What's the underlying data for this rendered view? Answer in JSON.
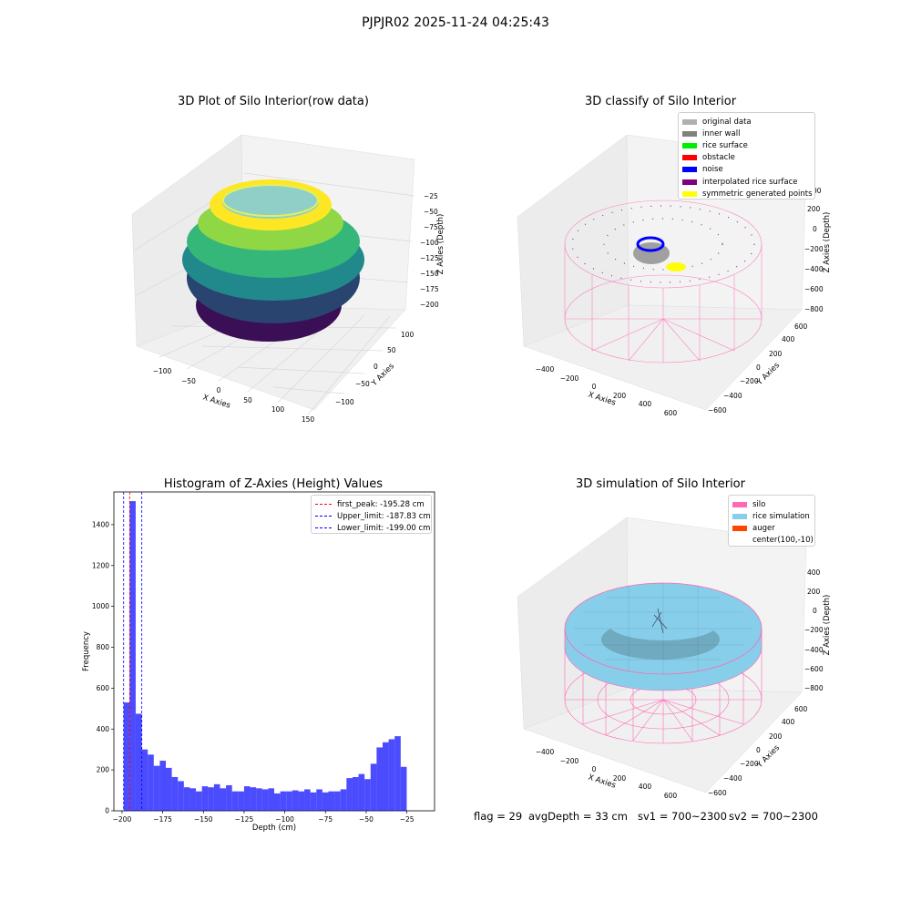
{
  "suptitle": "PJPJR02 2025-11-24 04:25:43",
  "panels": {
    "raw": {
      "title": "3D Plot of Silo Interior(row data)",
      "xlabel": "X Axies",
      "ylabel": "Y Axies",
      "zlabel": "Z Axies (Depth)",
      "xticks": [
        "−100",
        "−50",
        "0",
        "50",
        "100",
        "150"
      ],
      "yticks": [
        "100",
        "50",
        "0",
        "−50",
        "−100"
      ],
      "zticks": [
        "−25",
        "−50",
        "−75",
        "−100",
        "−125",
        "−150",
        "−175",
        "−200"
      ]
    },
    "classify": {
      "title": "3D classify of Silo Interior",
      "xlabel": "X Axies",
      "ylabel": "Y Axies",
      "zlabel": "Z Axies (Depth)",
      "xticks": [
        "−400",
        "−200",
        "0",
        "200",
        "400",
        "600"
      ],
      "yticks": [
        "600",
        "400",
        "200",
        "0",
        "−200",
        "−400",
        "−600"
      ],
      "zticks": [
        "200",
        "0",
        "−200",
        "−400",
        "−600",
        "−800"
      ],
      "zticks_partial": [
        "00"
      ],
      "legend": [
        {
          "label": "original data",
          "color": "#b0b0b0"
        },
        {
          "label": "inner wall",
          "color": "#808080"
        },
        {
          "label": "rice surface",
          "color": "#00ee00"
        },
        {
          "label": "obstacle",
          "color": "#ff0000"
        },
        {
          "label": "noise",
          "color": "#0000ff"
        },
        {
          "label": "interpolated rice surface",
          "color": "#800080"
        },
        {
          "label": "symmetric generated points",
          "color": "#ffff00"
        }
      ]
    },
    "simulation": {
      "title": "3D simulation of Silo Interior",
      "xlabel": "X Axies",
      "ylabel": "Y Axies",
      "zlabel": "Z Axies (Depth)",
      "xticks": [
        "−400",
        "−200",
        "0",
        "200",
        "400",
        "600"
      ],
      "yticks": [
        "600",
        "400",
        "200",
        "0",
        "−200",
        "−400",
        "−600"
      ],
      "zticks": [
        "400",
        "200",
        "0",
        "−200",
        "−400",
        "−600",
        "−800"
      ],
      "legend": [
        {
          "label": "silo",
          "color": "#ff69b4"
        },
        {
          "label": "rice simulation",
          "color": "#87ceeb"
        },
        {
          "label": "auger",
          "color": "#ff4500"
        },
        {
          "label": "center(100,-10)",
          "color": ""
        }
      ]
    }
  },
  "chart_data": {
    "type": "bar",
    "title": "Histogram of Z-Axies (Height) Values",
    "xlabel": "Depth (cm)",
    "ylabel": "Frequency",
    "xlim": [
      -205,
      -8
    ],
    "ylim": [
      0,
      1560
    ],
    "xticks": [
      -200,
      -175,
      -150,
      -125,
      -100,
      -75,
      -50,
      -25
    ],
    "yticks": [
      0,
      200,
      400,
      600,
      800,
      1000,
      1200,
      1400
    ],
    "bar_color": "#0000ff",
    "bin_start": -199.0,
    "bin_width": 3.7,
    "values": [
      530,
      1515,
      475,
      300,
      275,
      220,
      245,
      210,
      165,
      145,
      115,
      110,
      95,
      120,
      115,
      130,
      110,
      125,
      95,
      95,
      120,
      115,
      110,
      105,
      110,
      85,
      95,
      95,
      100,
      95,
      105,
      90,
      105,
      90,
      95,
      95,
      105,
      160,
      165,
      180,
      155,
      230,
      310,
      335,
      350,
      365,
      215
    ],
    "lines": [
      {
        "label": "first_peak: -195.28 cm",
        "x": -195.28,
        "color": "#ff0000"
      },
      {
        "label": "Upper_limit: -187.83 cm",
        "x": -187.83,
        "color": "#0000ff"
      },
      {
        "label": "Lower_limit: -199.00 cm",
        "x": -199.0,
        "color": "#0000ff"
      }
    ]
  },
  "footer": {
    "flag": "flag = 29",
    "avg": "avgDepth = 33 cm",
    "sv1": "sv1 = 700~2300",
    "sv2": "sv2 = 700~2300"
  }
}
